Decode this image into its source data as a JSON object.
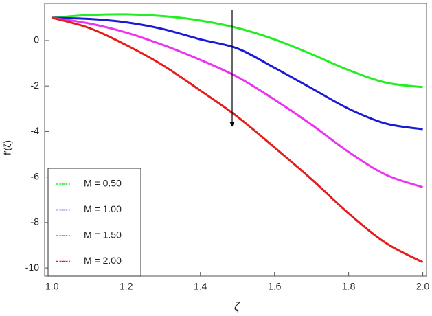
{
  "chart_data": {
    "type": "line",
    "x_label": "ζ",
    "y_label": "f′(ζ)",
    "x": [
      1.0,
      1.1,
      1.2,
      1.3,
      1.4,
      1.5,
      1.6,
      1.7,
      1.8,
      1.9,
      2.0
    ],
    "series": [
      {
        "name": "M = 0.50",
        "color": "#22ee22",
        "values": [
          1.0,
          1.12,
          1.15,
          1.07,
          0.88,
          0.55,
          0.05,
          -0.6,
          -1.3,
          -1.85,
          -2.05
        ]
      },
      {
        "name": "M = 1.00",
        "color": "#1a1ad6",
        "values": [
          1.0,
          0.95,
          0.8,
          0.5,
          0.05,
          -0.35,
          -1.2,
          -2.1,
          -3.0,
          -3.65,
          -3.9
        ]
      },
      {
        "name": "M = 1.50",
        "color": "#ee33ee",
        "values": [
          1.0,
          0.75,
          0.35,
          -0.2,
          -0.85,
          -1.6,
          -2.6,
          -3.7,
          -4.9,
          -5.9,
          -6.45
        ]
      },
      {
        "name": "M = 2.00",
        "color": "#e51c1c",
        "values": [
          1.0,
          0.55,
          -0.2,
          -1.1,
          -2.2,
          -3.35,
          -4.7,
          -6.1,
          -7.6,
          -8.9,
          -9.75
        ]
      }
    ],
    "xlim": [
      0.98,
      2.01
    ],
    "ylim": [
      -10.36,
      1.63
    ],
    "xticks": [
      {
        "value": 1.0,
        "label": "1.0"
      },
      {
        "value": 1.2,
        "label": "1.2"
      },
      {
        "value": 1.4,
        "label": "1.4"
      },
      {
        "value": 1.6,
        "label": "1.6"
      },
      {
        "value": 1.8,
        "label": "1.8"
      },
      {
        "value": 2.0,
        "label": "2.0"
      }
    ],
    "yticks": [
      -10,
      -8,
      -6,
      -4,
      -2,
      0
    ],
    "legend": "lower left"
  }
}
